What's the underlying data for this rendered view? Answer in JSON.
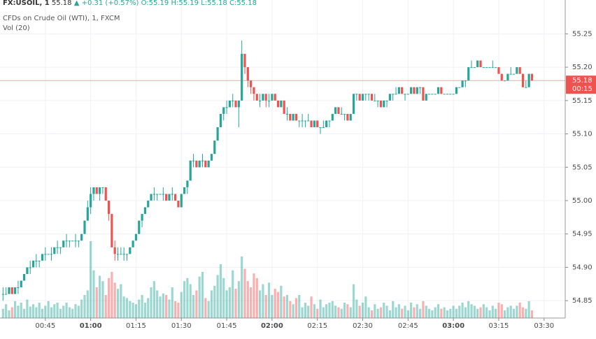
{
  "chart_data": {
    "type": "candlestick",
    "header": {
      "symbol": "FX:USOIL, 1",
      "last": "55.18",
      "change": "+0.31 (+0.57%)",
      "open": "O:55.19",
      "high": "H:55.19",
      "low": "L:55.18",
      "close": "C:55.18"
    },
    "title": "CFDs on Crude Oil (WTI), 1, FXCM",
    "volume_label": "Vol (20)",
    "x": [
      "00:31",
      "00:32",
      "00:33",
      "00:34",
      "00:35",
      "00:36",
      "00:37",
      "00:38",
      "00:39",
      "00:40",
      "00:41",
      "00:42",
      "00:43",
      "00:44",
      "00:45",
      "00:46",
      "00:47",
      "00:48",
      "00:49",
      "00:50",
      "00:51",
      "00:52",
      "00:53",
      "00:54",
      "00:55",
      "00:56",
      "00:57",
      "00:58",
      "00:59",
      "01:00",
      "01:01",
      "01:02",
      "01:03",
      "01:04",
      "01:05",
      "01:06",
      "01:07",
      "01:08",
      "01:09",
      "01:10",
      "01:11",
      "01:12",
      "01:13",
      "01:14",
      "01:15",
      "01:16",
      "01:17",
      "01:18",
      "01:19",
      "01:20",
      "01:21",
      "01:22",
      "01:23",
      "01:24",
      "01:25",
      "01:26",
      "01:27",
      "01:28",
      "01:29",
      "01:30",
      "01:31",
      "01:32",
      "01:33",
      "01:34",
      "01:35",
      "01:36",
      "01:37",
      "01:38",
      "01:39",
      "01:40",
      "01:41",
      "01:42",
      "01:43",
      "01:44",
      "01:45",
      "01:46",
      "01:47",
      "01:48",
      "01:49",
      "01:50",
      "01:51",
      "01:52",
      "01:53",
      "01:54",
      "01:55",
      "01:56",
      "01:57",
      "01:58",
      "01:59",
      "02:00",
      "02:01",
      "02:02",
      "02:03",
      "02:04",
      "02:05",
      "02:06",
      "02:07",
      "02:08",
      "02:09",
      "02:10",
      "02:11",
      "02:12",
      "02:13",
      "02:14",
      "02:15",
      "02:16",
      "02:17",
      "02:18",
      "02:19",
      "02:20",
      "02:21",
      "02:22",
      "02:23",
      "02:24",
      "02:25",
      "02:26",
      "02:27",
      "02:28",
      "02:29",
      "02:30",
      "02:31",
      "02:32",
      "02:33",
      "02:34",
      "02:35",
      "02:36",
      "02:37",
      "02:38",
      "02:39",
      "02:40",
      "02:41",
      "02:42",
      "02:43",
      "02:44",
      "02:45",
      "02:46",
      "02:47",
      "02:48",
      "02:49",
      "02:50",
      "02:51",
      "02:52",
      "02:53",
      "02:54",
      "02:55",
      "02:56",
      "02:57",
      "02:58",
      "02:59",
      "03:00",
      "03:01",
      "03:02",
      "03:03",
      "03:04",
      "03:05",
      "03:06",
      "03:07",
      "03:08",
      "03:09",
      "03:10",
      "03:11",
      "03:12",
      "03:13",
      "03:14",
      "03:15",
      "03:16",
      "03:17",
      "03:18",
      "03:19",
      "03:20",
      "03:21",
      "03:22",
      "03:23",
      "03:24",
      "03:25",
      "03:26"
    ],
    "open": [
      54.86,
      54.86,
      54.86,
      54.87,
      54.86,
      54.87,
      54.87,
      54.88,
      54.89,
      54.9,
      54.9,
      54.91,
      54.91,
      54.91,
      54.92,
      54.92,
      54.92,
      54.92,
      54.93,
      54.93,
      54.93,
      54.94,
      54.94,
      54.94,
      54.94,
      54.94,
      54.94,
      54.95,
      54.97,
      54.99,
      55.01,
      55.02,
      55.01,
      55.02,
      55.02,
      55.0,
      54.98,
      54.93,
      54.92,
      54.92,
      54.92,
      54.92,
      54.92,
      54.93,
      54.94,
      54.95,
      54.97,
      54.98,
      54.99,
      55.0,
      55.01,
      55.01,
      55.01,
      55.01,
      55.01,
      55.0,
      55.01,
      55.01,
      55.0,
      54.99,
      55.01,
      55.02,
      55.03,
      55.06,
      55.06,
      55.05,
      55.06,
      55.06,
      55.05,
      55.06,
      55.07,
      55.09,
      55.11,
      55.13,
      55.14,
      55.14,
      55.15,
      55.15,
      55.14,
      55.15,
      55.22,
      55.2,
      55.18,
      55.17,
      55.16,
      55.15,
      55.15,
      55.16,
      55.15,
      55.15,
      55.16,
      55.15,
      55.14,
      55.15,
      55.13,
      55.13,
      55.12,
      55.13,
      55.12,
      55.12,
      55.12,
      55.12,
      55.12,
      55.11,
      55.12,
      55.11,
      55.11,
      55.11,
      55.12,
      55.12,
      55.13,
      55.14,
      55.13,
      55.13,
      55.13,
      55.12,
      55.13,
      55.16,
      55.16,
      55.15,
      55.16,
      55.16,
      55.16,
      55.15,
      55.15,
      55.15,
      55.14,
      55.15,
      55.15,
      55.16,
      55.16,
      55.16,
      55.17,
      55.16,
      55.16,
      55.16,
      55.17,
      55.16,
      55.17,
      55.17,
      55.15,
      55.16,
      55.16,
      55.16,
      55.16,
      55.17,
      55.16,
      55.16,
      55.16,
      55.16,
      55.16,
      55.17,
      55.17,
      55.18,
      55.18,
      55.2,
      55.2,
      55.2,
      55.21,
      55.2,
      55.2,
      55.2,
      55.2,
      55.2,
      55.2,
      55.19,
      55.18,
      55.18,
      55.19,
      55.19,
      55.19,
      55.2,
      55.19,
      55.17,
      55.17,
      55.19
    ],
    "high": [
      54.87,
      54.87,
      54.87,
      54.87,
      54.87,
      54.88,
      54.88,
      54.89,
      54.9,
      54.91,
      54.91,
      54.92,
      54.91,
      54.92,
      54.93,
      54.92,
      54.93,
      54.93,
      54.94,
      54.93,
      54.94,
      54.95,
      54.94,
      54.94,
      54.95,
      54.94,
      54.95,
      54.97,
      55.0,
      55.02,
      55.02,
      55.02,
      55.02,
      55.02,
      55.02,
      55.0,
      54.98,
      54.94,
      54.93,
      54.93,
      54.93,
      54.92,
      54.93,
      54.94,
      54.95,
      54.97,
      54.98,
      54.99,
      55.0,
      55.01,
      55.02,
      55.01,
      55.01,
      55.02,
      55.01,
      55.01,
      55.02,
      55.01,
      55.0,
      55.01,
      55.02,
      55.03,
      55.06,
      55.07,
      55.06,
      55.06,
      55.07,
      55.06,
      55.06,
      55.07,
      55.09,
      55.11,
      55.13,
      55.14,
      55.15,
      55.15,
      55.16,
      55.15,
      55.15,
      55.24,
      55.22,
      55.2,
      55.18,
      55.17,
      55.16,
      55.16,
      55.16,
      55.16,
      55.16,
      55.16,
      55.16,
      55.15,
      55.15,
      55.15,
      55.14,
      55.13,
      55.13,
      55.13,
      55.12,
      55.13,
      55.12,
      55.13,
      55.12,
      55.12,
      55.12,
      55.11,
      55.12,
      55.12,
      55.12,
      55.13,
      55.14,
      55.14,
      55.14,
      55.13,
      55.13,
      55.13,
      55.16,
      55.16,
      55.16,
      55.16,
      55.16,
      55.16,
      55.16,
      55.16,
      55.15,
      55.15,
      55.15,
      55.15,
      55.16,
      55.16,
      55.17,
      55.17,
      55.17,
      55.16,
      55.16,
      55.17,
      55.17,
      55.17,
      55.17,
      55.17,
      55.16,
      55.16,
      55.16,
      55.16,
      55.17,
      55.17,
      55.16,
      55.16,
      55.16,
      55.16,
      55.17,
      55.17,
      55.18,
      55.18,
      55.2,
      55.21,
      55.2,
      55.21,
      55.21,
      55.2,
      55.2,
      55.2,
      55.21,
      55.2,
      55.2,
      55.19,
      55.18,
      55.19,
      55.2,
      55.19,
      55.2,
      55.2,
      55.19,
      55.18,
      55.19,
      55.19
    ],
    "low": [
      54.85,
      54.86,
      54.86,
      54.86,
      54.86,
      54.86,
      54.87,
      54.88,
      54.89,
      54.89,
      54.9,
      54.9,
      54.9,
      54.91,
      54.91,
      54.92,
      54.91,
      54.92,
      54.92,
      54.92,
      54.93,
      54.93,
      54.93,
      54.94,
      54.93,
      54.93,
      54.94,
      54.95,
      54.97,
      54.98,
      55.0,
      55.01,
      55.0,
      55.01,
      55.0,
      54.97,
      54.93,
      54.91,
      54.91,
      54.92,
      54.91,
      54.91,
      54.92,
      54.93,
      54.94,
      54.95,
      54.96,
      54.98,
      54.99,
      55.0,
      55.0,
      55.0,
      55.01,
      55.0,
      55.0,
      55.0,
      55.0,
      55.0,
      54.99,
      54.99,
      55.01,
      55.01,
      55.03,
      55.05,
      55.05,
      55.05,
      55.05,
      55.05,
      55.05,
      55.06,
      55.07,
      55.09,
      55.11,
      55.12,
      55.13,
      55.14,
      55.14,
      55.14,
      55.11,
      55.15,
      55.19,
      55.17,
      55.16,
      55.15,
      55.15,
      55.14,
      55.15,
      55.14,
      55.14,
      55.15,
      55.15,
      55.14,
      55.14,
      55.13,
      55.12,
      55.12,
      55.12,
      55.12,
      55.11,
      55.11,
      55.11,
      55.12,
      55.11,
      55.11,
      55.11,
      55.1,
      55.11,
      55.11,
      55.11,
      55.12,
      55.13,
      55.13,
      55.13,
      55.12,
      55.12,
      55.12,
      55.13,
      55.15,
      55.15,
      55.15,
      55.15,
      55.15,
      55.15,
      55.15,
      55.14,
      55.14,
      55.14,
      55.14,
      55.15,
      55.15,
      55.16,
      55.16,
      55.16,
      55.15,
      55.16,
      55.16,
      55.16,
      55.16,
      55.16,
      55.15,
      55.15,
      55.16,
      55.16,
      55.16,
      55.16,
      55.16,
      55.16,
      55.16,
      55.16,
      55.16,
      55.16,
      55.17,
      55.17,
      55.17,
      55.18,
      55.2,
      55.2,
      55.2,
      55.2,
      55.2,
      55.2,
      55.2,
      55.2,
      55.2,
      55.19,
      55.18,
      55.18,
      55.18,
      55.19,
      55.19,
      55.19,
      55.19,
      55.17,
      55.17,
      55.17,
      55.18
    ],
    "close": [
      54.86,
      54.86,
      54.87,
      54.86,
      54.87,
      54.87,
      54.88,
      54.89,
      54.9,
      54.9,
      54.91,
      54.91,
      54.91,
      54.92,
      54.92,
      54.92,
      54.92,
      54.93,
      54.93,
      54.93,
      54.94,
      54.94,
      54.94,
      54.94,
      54.94,
      54.94,
      54.95,
      54.97,
      54.99,
      55.01,
      55.02,
      55.01,
      55.02,
      55.02,
      55.0,
      54.98,
      54.93,
      54.92,
      54.92,
      54.92,
      54.92,
      54.92,
      54.93,
      54.94,
      54.95,
      54.97,
      54.98,
      54.99,
      55.0,
      55.01,
      55.01,
      55.01,
      55.01,
      55.01,
      55.0,
      55.01,
      55.01,
      55.0,
      54.99,
      55.01,
      55.02,
      55.03,
      55.06,
      55.06,
      55.05,
      55.06,
      55.06,
      55.05,
      55.06,
      55.07,
      55.09,
      55.11,
      55.13,
      55.14,
      55.14,
      55.15,
      55.15,
      55.14,
      55.15,
      55.22,
      55.2,
      55.18,
      55.17,
      55.16,
      55.15,
      55.15,
      55.16,
      55.15,
      55.15,
      55.16,
      55.15,
      55.14,
      55.15,
      55.13,
      55.13,
      55.12,
      55.13,
      55.12,
      55.12,
      55.12,
      55.12,
      55.12,
      55.11,
      55.12,
      55.11,
      55.11,
      55.11,
      55.12,
      55.12,
      55.13,
      55.14,
      55.13,
      55.13,
      55.13,
      55.12,
      55.13,
      55.16,
      55.16,
      55.15,
      55.16,
      55.16,
      55.16,
      55.15,
      55.15,
      55.15,
      55.14,
      55.15,
      55.15,
      55.16,
      55.16,
      55.16,
      55.17,
      55.16,
      55.16,
      55.16,
      55.17,
      55.16,
      55.17,
      55.17,
      55.15,
      55.16,
      55.16,
      55.16,
      55.16,
      55.17,
      55.16,
      55.16,
      55.16,
      55.16,
      55.16,
      55.17,
      55.17,
      55.18,
      55.18,
      55.2,
      55.2,
      55.2,
      55.21,
      55.2,
      55.2,
      55.2,
      55.2,
      55.2,
      55.2,
      55.19,
      55.18,
      55.18,
      55.19,
      55.19,
      55.19,
      55.2,
      55.19,
      55.17,
      55.17,
      55.19,
      55.18
    ],
    "volume": [
      12,
      18,
      10,
      14,
      22,
      16,
      20,
      12,
      24,
      15,
      18,
      14,
      20,
      12,
      16,
      22,
      14,
      18,
      20,
      12,
      16,
      20,
      14,
      12,
      18,
      16,
      24,
      30,
      36,
      100,
      62,
      40,
      55,
      48,
      30,
      52,
      60,
      46,
      38,
      44,
      28,
      26,
      22,
      20,
      18,
      24,
      30,
      20,
      26,
      40,
      48,
      36,
      28,
      32,
      30,
      24,
      40,
      22,
      20,
      34,
      48,
      52,
      44,
      30,
      36,
      54,
      60,
      26,
      22,
      36,
      42,
      56,
      70,
      52,
      36,
      40,
      62,
      38,
      48,
      80,
      64,
      48,
      40,
      58,
      52,
      36,
      44,
      30,
      46,
      30,
      38,
      34,
      42,
      28,
      30,
      22,
      18,
      26,
      30,
      14,
      20,
      16,
      28,
      18,
      12,
      24,
      14,
      18,
      20,
      22,
      16,
      14,
      12,
      20,
      18,
      14,
      44,
      24,
      16,
      20,
      28,
      14,
      10,
      18,
      12,
      14,
      20,
      16,
      10,
      22,
      14,
      18,
      12,
      16,
      10,
      20,
      14,
      18,
      12,
      22,
      16,
      12,
      10,
      14,
      18,
      12,
      14,
      10,
      12,
      16,
      12,
      16,
      20,
      14,
      22,
      18,
      16,
      12,
      14,
      18,
      14,
      10,
      16,
      12,
      20,
      18,
      10,
      14,
      16,
      12,
      16,
      20,
      14,
      12,
      22,
      10
    ],
    "up_color": "#26a69a",
    "down_color": "#ef5350",
    "xlim": [
      "00:30",
      "03:37"
    ],
    "xticks": [
      "00:45",
      "01:00",
      "01:15",
      "01:30",
      "01:45",
      "02:00",
      "02:15",
      "02:30",
      "02:45",
      "03:00",
      "03:15",
      "03:30"
    ],
    "ylim": [
      54.824,
      55.285
    ],
    "yticks": [
      54.85,
      {
        "value": 54.9,
        "label": "54.90"
      },
      54.95,
      {
        "value": 55.0,
        "label": "55.00"
      },
      55.05,
      {
        "value": 55.1,
        "label": "55.10"
      },
      55.15,
      {
        "value": 55.2,
        "label": "55.20"
      },
      55.25
    ],
    "last_price": 55.18,
    "countdown": "00:15",
    "grid": true
  }
}
